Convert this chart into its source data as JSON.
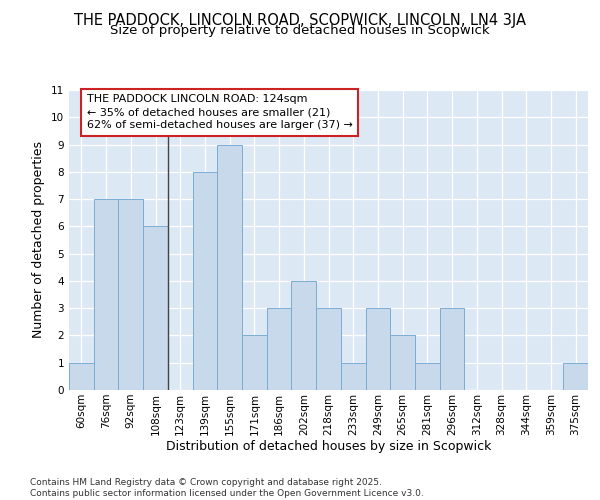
{
  "title_line1": "THE PADDOCK, LINCOLN ROAD, SCOPWICK, LINCOLN, LN4 3JA",
  "title_line2": "Size of property relative to detached houses in Scopwick",
  "xlabel": "Distribution of detached houses by size in Scopwick",
  "ylabel": "Number of detached properties",
  "categories": [
    "60sqm",
    "76sqm",
    "92sqm",
    "108sqm",
    "123sqm",
    "139sqm",
    "155sqm",
    "171sqm",
    "186sqm",
    "202sqm",
    "218sqm",
    "233sqm",
    "249sqm",
    "265sqm",
    "281sqm",
    "296sqm",
    "312sqm",
    "328sqm",
    "344sqm",
    "359sqm",
    "375sqm"
  ],
  "values": [
    1,
    7,
    7,
    6,
    0,
    8,
    9,
    2,
    3,
    4,
    3,
    1,
    3,
    2,
    1,
    3,
    0,
    0,
    0,
    0,
    1
  ],
  "bar_color": "#c9d9ec",
  "bar_edge_color": "#7aadd4",
  "background_color": "#dde8f5",
  "grid_color": "#ffffff",
  "ylim": [
    0,
    11
  ],
  "yticks": [
    0,
    1,
    2,
    3,
    4,
    5,
    6,
    7,
    8,
    9,
    10,
    11
  ],
  "annotation_line1": "THE PADDOCK LINCOLN ROAD: 124sqm",
  "annotation_line2": "← 35% of detached houses are smaller (21)",
  "annotation_line3": "62% of semi-detached houses are larger (37) →",
  "vline_x_index": 4,
  "annotation_box_facecolor": "#ffffff",
  "annotation_box_edgecolor": "#cc2222",
  "footer_text": "Contains HM Land Registry data © Crown copyright and database right 2025.\nContains public sector information licensed under the Open Government Licence v3.0.",
  "title1_fontsize": 10.5,
  "title2_fontsize": 9.5,
  "axis_label_fontsize": 9,
  "tick_fontsize": 7.5,
  "annotation_fontsize": 8,
  "footer_fontsize": 6.5
}
